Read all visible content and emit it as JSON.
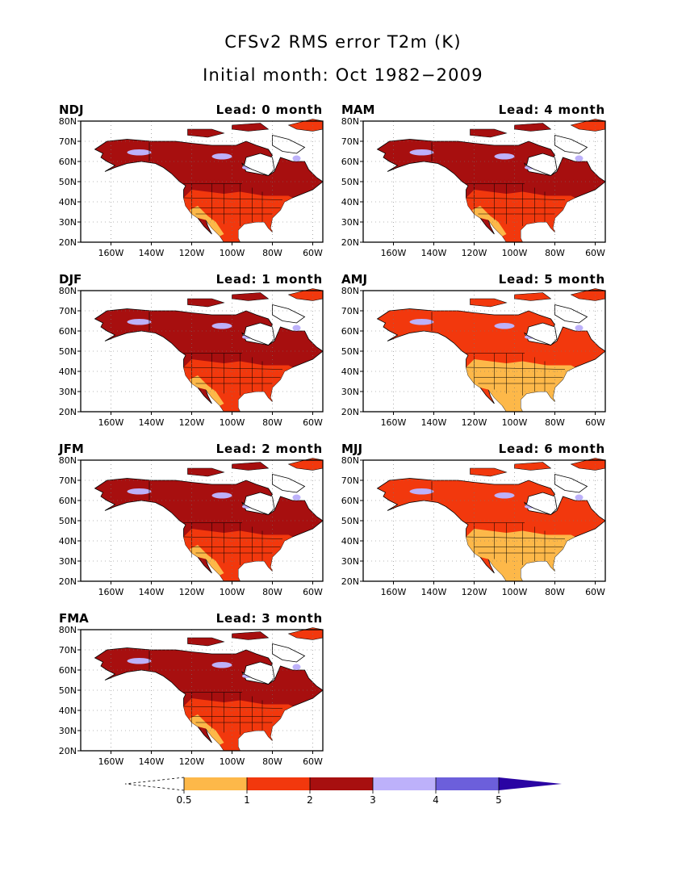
{
  "title": "CFSv2 RMS error T2m (K)",
  "subtitle": "Initial month: Oct 1982−2009",
  "panels": [
    {
      "season": "NDJ",
      "lead": "Lead: 0 month",
      "level": 3
    },
    {
      "season": "MAM",
      "lead": "Lead: 4 month",
      "level": 3
    },
    {
      "season": "DJF",
      "lead": "Lead: 1 month",
      "level": 3
    },
    {
      "season": "AMJ",
      "lead": "Lead: 5 month",
      "level": 2
    },
    {
      "season": "JFM",
      "lead": "Lead: 2 month",
      "level": 3
    },
    {
      "season": "MJJ",
      "lead": "Lead: 6 month",
      "level": 2
    },
    {
      "season": "FMA",
      "lead": "Lead: 3 month",
      "level": 3
    }
  ],
  "axes": {
    "lat_labels": [
      "80N",
      "70N",
      "60N",
      "50N",
      "40N",
      "30N",
      "20N"
    ],
    "lon_labels": [
      "160W",
      "140W",
      "120W",
      "100W",
      "80W",
      "60W"
    ]
  },
  "colorbar": {
    "labels": [
      "0.5",
      "1",
      "2",
      "3",
      "4",
      "5"
    ],
    "colors": [
      "#FDB849",
      "#F2380D",
      "#A70F0F",
      "#BDB1FA",
      "#6C5FDB",
      "#2A04A3"
    ]
  }
}
